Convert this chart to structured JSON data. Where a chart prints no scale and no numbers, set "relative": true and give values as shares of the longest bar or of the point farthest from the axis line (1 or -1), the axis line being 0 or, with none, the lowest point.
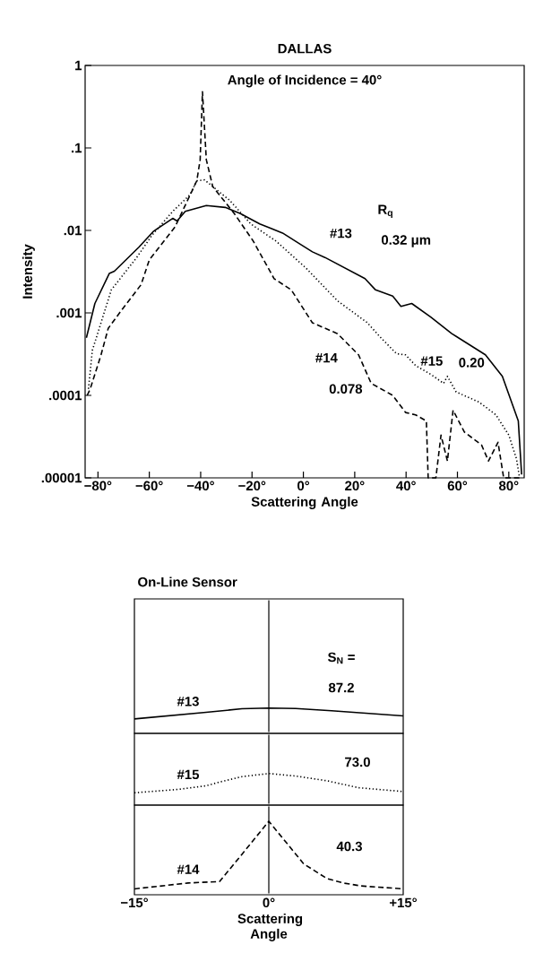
{
  "chart_data": [
    {
      "type": "line",
      "title": "DALLAS",
      "subtitle": "Angle of Incidence = 40°",
      "xlabel": "Scattering Angle",
      "ylabel": "Intensity",
      "log": "y",
      "xlim": [
        -85,
        86
      ],
      "ylim": [
        1e-05,
        1
      ],
      "xticks": [
        {
          "value": -80,
          "label": "−80°"
        },
        {
          "value": -60,
          "label": "−60°"
        },
        {
          "value": -40,
          "label": "−40°"
        },
        {
          "value": -20,
          "label": "−20°"
        },
        {
          "value": 0,
          "label": "0°"
        },
        {
          "value": 20,
          "label": "20°"
        },
        {
          "value": 40,
          "label": "40°"
        },
        {
          "value": 60,
          "label": "60°"
        },
        {
          "value": 80,
          "label": "80°"
        }
      ],
      "yticks": [
        {
          "value": 1,
          "label": "1"
        },
        {
          "value": 0.1,
          "label": ".1"
        },
        {
          "value": 0.01,
          "label": ".01"
        },
        {
          "value": 0.001,
          "label": ".001"
        },
        {
          "value": 0.0001,
          "label": ".0001"
        },
        {
          "value": 1e-05,
          "label": ".00001"
        }
      ],
      "series": [
        {
          "name": "#13",
          "color": "#000000",
          "line_style": "solid",
          "x": [
            -84.5,
            -81.2,
            -75.6,
            -73.6,
            -64,
            -58.3,
            -50.9,
            -49.2,
            -46,
            -37.8,
            -30.4,
            -24.5,
            -17,
            -8.1,
            -1.5,
            3.5,
            8.4,
            24,
            28.1,
            34.8,
            38,
            42.2,
            49.6,
            57.8,
            70.9,
            77.5,
            83.7,
            85
          ],
          "values": [
            0.0005,
            0.0013,
            0.003,
            0.0032,
            0.0063,
            0.0098,
            0.014,
            0.013,
            0.017,
            0.02,
            0.019,
            0.016,
            0.012,
            0.0093,
            0.0069,
            0.0055,
            0.0047,
            0.0026,
            0.0019,
            0.0016,
            0.0012,
            0.0013,
            0.00089,
            0.00056,
            0.00031,
            0.00017,
            4.9e-05,
            1.1e-05
          ]
        },
        {
          "name": "#15",
          "color": "#000000",
          "line_style": "dotted",
          "x": [
            -83.7,
            -82.2,
            -74.8,
            -64.9,
            -59,
            -50.9,
            -44.2,
            -41.5,
            -38.5,
            -28.6,
            -20.5,
            -10.6,
            1,
            13.3,
            24.9,
            29.9,
            36.3,
            39.8,
            43.7,
            49.6,
            54.6,
            56.1,
            59.5,
            68.4,
            75,
            80,
            83,
            84.2
          ],
          "values": [
            0.00012,
            0.00035,
            0.0019,
            0.0047,
            0.0087,
            0.017,
            0.027,
            0.04,
            0.041,
            0.023,
            0.012,
            0.0074,
            0.0035,
            0.0014,
            0.00076,
            0.00051,
            0.00032,
            0.00031,
            0.00023,
            0.00018,
            0.00014,
            0.00017,
            0.00011,
            8.3e-05,
            5.8e-05,
            3.3e-05,
            1.7e-05,
            1e-05
          ]
        },
        {
          "name": "#14",
          "color": "#000000",
          "line_style": "dashed",
          "x": [
            -84.2,
            -83,
            -78.8,
            -76,
            -70.6,
            -63.2,
            -60,
            -50,
            -41.5,
            -40.2,
            -39.3,
            -37.8,
            -35.3,
            -26.9,
            -19.5,
            -11.4,
            -4.7,
            3.5,
            13.3,
            21.5,
            26.4,
            34.8,
            39.8,
            43.7,
            47.9,
            48.6,
            51.6,
            53.6,
            56.1,
            58.3,
            62.7,
            69.4,
            72.1,
            75.8,
            78,
            85
          ],
          "values": [
            0.0001,
            0.00012,
            0.00031,
            0.00065,
            0.0011,
            0.0022,
            0.0044,
            0.011,
            0.04,
            0.072,
            0.48,
            0.072,
            0.034,
            0.016,
            0.0074,
            0.0026,
            0.0019,
            0.00076,
            0.00056,
            0.00031,
            0.00014,
            0.0001,
            6.2e-05,
            5.8e-05,
            4.9e-05,
            1e-05,
            1e-05,
            3.3e-05,
            1.6e-05,
            6.6e-05,
            3.6e-05,
            2.5e-05,
            1.6e-05,
            2.7e-05,
            1e-05,
            1e-05
          ]
        }
      ],
      "annotations": [
        "R$_{q}$",
        "0.32 μm",
        "0.20",
        "0.078"
      ]
    },
    {
      "type": "line",
      "title": "On-Line Sensor",
      "relative": true,
      "tick_labels": false,
      "xlim": [
        -15,
        15
      ],
      "ref_lines": [
        {
          "axis": "x",
          "value": 0
        }
      ],
      "series": [
        {
          "name": "#13",
          "color": "#000000",
          "line_style": "solid",
          "x": [
            -15,
            -7,
            -3,
            0,
            3,
            7,
            15
          ],
          "values": [
            0.57,
            0.83,
            0.97,
            1,
            0.98,
            0.89,
            0.69
          ]
        }
      ],
      "annotations": [
        "S$_{N}$ =",
        "87.2"
      ]
    },
    {
      "type": "line",
      "relative": true,
      "tick_labels": false,
      "xlim": [
        -15,
        15
      ],
      "ref_lines": [
        {
          "axis": "x",
          "value": 0
        }
      ],
      "series": [
        {
          "name": "#15",
          "color": "#000000",
          "line_style": "dotted",
          "x": [
            -15,
            -10,
            -7,
            -5.5,
            -3,
            0,
            3,
            6.5,
            10,
            15
          ],
          "values": [
            0.39,
            0.5,
            0.61,
            0.73,
            0.9,
            1,
            0.92,
            0.77,
            0.55,
            0.43
          ]
        }
      ],
      "annotations": [
        "73.0"
      ]
    },
    {
      "type": "line",
      "xlabel": "Scattering Angle",
      "relative": true,
      "tick_labels": "x",
      "xlim": [
        -15,
        15
      ],
      "xticks": [
        {
          "value": -15,
          "label": "−15°"
        },
        {
          "value": 0,
          "label": "0°"
        },
        {
          "value": 15,
          "label": "+15°"
        }
      ],
      "ref_lines": [
        {
          "axis": "x",
          "value": 0
        }
      ],
      "series": [
        {
          "name": "#14",
          "color": "#000000",
          "line_style": "dashed",
          "x": [
            -15,
            -12,
            -9,
            -5.5,
            -3,
            0,
            3.9,
            6.5,
            8.3,
            10.3,
            15
          ],
          "values": [
            0.08,
            0.12,
            0.16,
            0.18,
            0.55,
            1,
            0.42,
            0.22,
            0.16,
            0.12,
            0.08
          ]
        }
      ],
      "annotations": [
        "40.3"
      ]
    }
  ]
}
